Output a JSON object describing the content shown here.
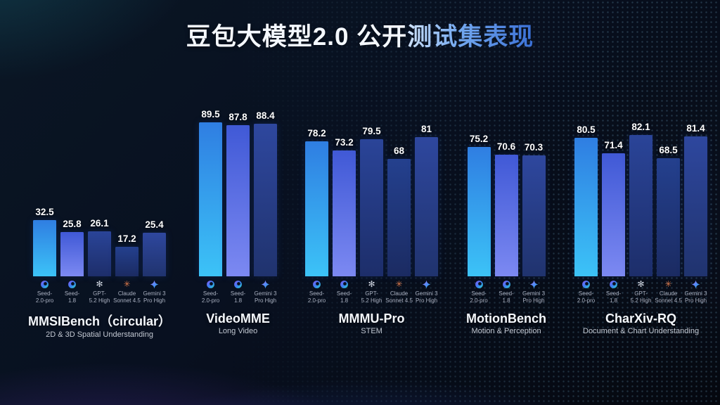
{
  "page": {
    "title_white": "豆包大模型2.0 公开",
    "title_blue": "测试集表现"
  },
  "colors": {
    "background_base": "#05080f",
    "title_blue_from": "#cfe2fa",
    "title_blue_to": "#3a70d6",
    "value_label": "#ffffff",
    "benchmark_title": "#f4f7fc",
    "benchmark_subtitle": "#c2c8d2",
    "model_label": "#a9b0c0",
    "claude_icon": "#d9784a",
    "gpt_icon": "#ccd2dd"
  },
  "chart_data": {
    "type": "bar",
    "title": "豆包大模型2.0 公开测试集表现",
    "value_axis": {
      "min": 0,
      "max": 100,
      "gridlines": false,
      "axis_visible": false
    },
    "legend_position": "below-each-bar",
    "models": {
      "seed-2.0-pro": {
        "label_lines": [
          "Seed-",
          "2.0-pro"
        ],
        "icon": "seed",
        "bar_gradient": [
          "#2f7ee2",
          "#3cc3f7"
        ]
      },
      "seed-1.8": {
        "label_lines": [
          "Seed-",
          "1.8"
        ],
        "icon": "seed",
        "bar_gradient": [
          "#4059d6",
          "#7c89f2"
        ]
      },
      "gpt-5.2-high": {
        "label_lines": [
          "GPT-",
          "5.2 High"
        ],
        "icon": "gpt",
        "bar_gradient": [
          "#2a4498",
          "#1d2e6a"
        ]
      },
      "claude-sonnet-4.5": {
        "label_lines": [
          "Claude",
          "Sonnet 4.5"
        ],
        "icon": "claude",
        "bar_gradient": [
          "#24408e",
          "#1b2b62"
        ]
      },
      "gemini-3-pro-high": {
        "label_lines": [
          "Gemini 3",
          "Pro High"
        ],
        "icon": "gemini",
        "bar_gradient": [
          "#2e479e",
          "#20336e"
        ]
      }
    },
    "groups": [
      {
        "name": "MMSIBench（circular）",
        "subtitle": "2D & 3D Spatial Understanding",
        "bars": [
          {
            "model": "seed-2.0-pro",
            "value": 32.5
          },
          {
            "model": "seed-1.8",
            "value": 25.8
          },
          {
            "model": "gpt-5.2-high",
            "value": 26.1
          },
          {
            "model": "claude-sonnet-4.5",
            "value": 17.2
          },
          {
            "model": "gemini-3-pro-high",
            "value": 25.4
          }
        ]
      },
      {
        "name": "VideoMME",
        "subtitle": "Long Video",
        "bars": [
          {
            "model": "seed-2.0-pro",
            "value": 89.5
          },
          {
            "model": "seed-1.8",
            "value": 87.8
          },
          {
            "model": "gemini-3-pro-high",
            "value": 88.4
          }
        ]
      },
      {
        "name": "MMMU-Pro",
        "subtitle": "STEM",
        "bars": [
          {
            "model": "seed-2.0-pro",
            "value": 78.2
          },
          {
            "model": "seed-1.8",
            "value": 73.2
          },
          {
            "model": "gpt-5.2-high",
            "value": 79.5
          },
          {
            "model": "claude-sonnet-4.5",
            "value": 68
          },
          {
            "model": "gemini-3-pro-high",
            "value": 81
          }
        ]
      },
      {
        "name": "MotionBench",
        "subtitle": "Motion & Perception",
        "bars": [
          {
            "model": "seed-2.0-pro",
            "value": 75.2
          },
          {
            "model": "seed-1.8",
            "value": 70.6
          },
          {
            "model": "gemini-3-pro-high",
            "value": 70.3
          }
        ]
      },
      {
        "name": "CharXiv-RQ",
        "subtitle": "Document & Chart Understanding",
        "bars": [
          {
            "model": "seed-2.0-pro",
            "value": 80.5
          },
          {
            "model": "seed-1.8",
            "value": 71.4
          },
          {
            "model": "gpt-5.2-high",
            "value": 82.1
          },
          {
            "model": "claude-sonnet-4.5",
            "value": 68.5
          },
          {
            "model": "gemini-3-pro-high",
            "value": 81.4
          }
        ]
      }
    ]
  }
}
